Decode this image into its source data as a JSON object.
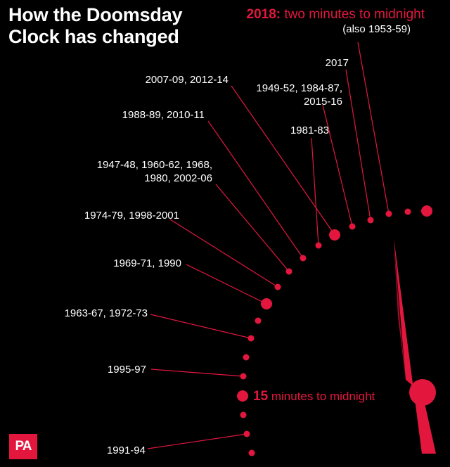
{
  "title_line1": "How the Doomsday",
  "title_line2": "Clock has changed",
  "headline_bold": "2018:",
  "headline_rest": " two minutes to midnight",
  "subheadline": "(also 1953-59)",
  "mid_label_bold": "15",
  "mid_label_rest": " minutes to midnight",
  "logo_text": "PA",
  "colors": {
    "accent": "#e3173e",
    "accent_dark": "#a50e2c",
    "text": "#ffffff",
    "background": "#000000"
  },
  "labels": [
    {
      "lines": [
        "2017"
      ]
    },
    {
      "lines": [
        "1949-52, 1984-87,",
        "2015-16"
      ]
    },
    {
      "lines": [
        "2007-09, 2012-14"
      ]
    },
    {
      "lines": [
        "1981-83"
      ]
    },
    {
      "lines": [
        "1988-89, 2010-11"
      ]
    },
    {
      "lines": [
        "1947-48, 1960-62, 1968,",
        "1980, 2002-06"
      ]
    },
    {
      "lines": [
        "1974-79, 1998-2001"
      ]
    },
    {
      "lines": [
        "1969-71, 1990"
      ]
    },
    {
      "lines": [
        "1963-67, 1972-73"
      ]
    },
    {
      "lines": [
        "1995-97"
      ]
    },
    {
      "lines": [
        "1991-94"
      ]
    }
  ]
}
